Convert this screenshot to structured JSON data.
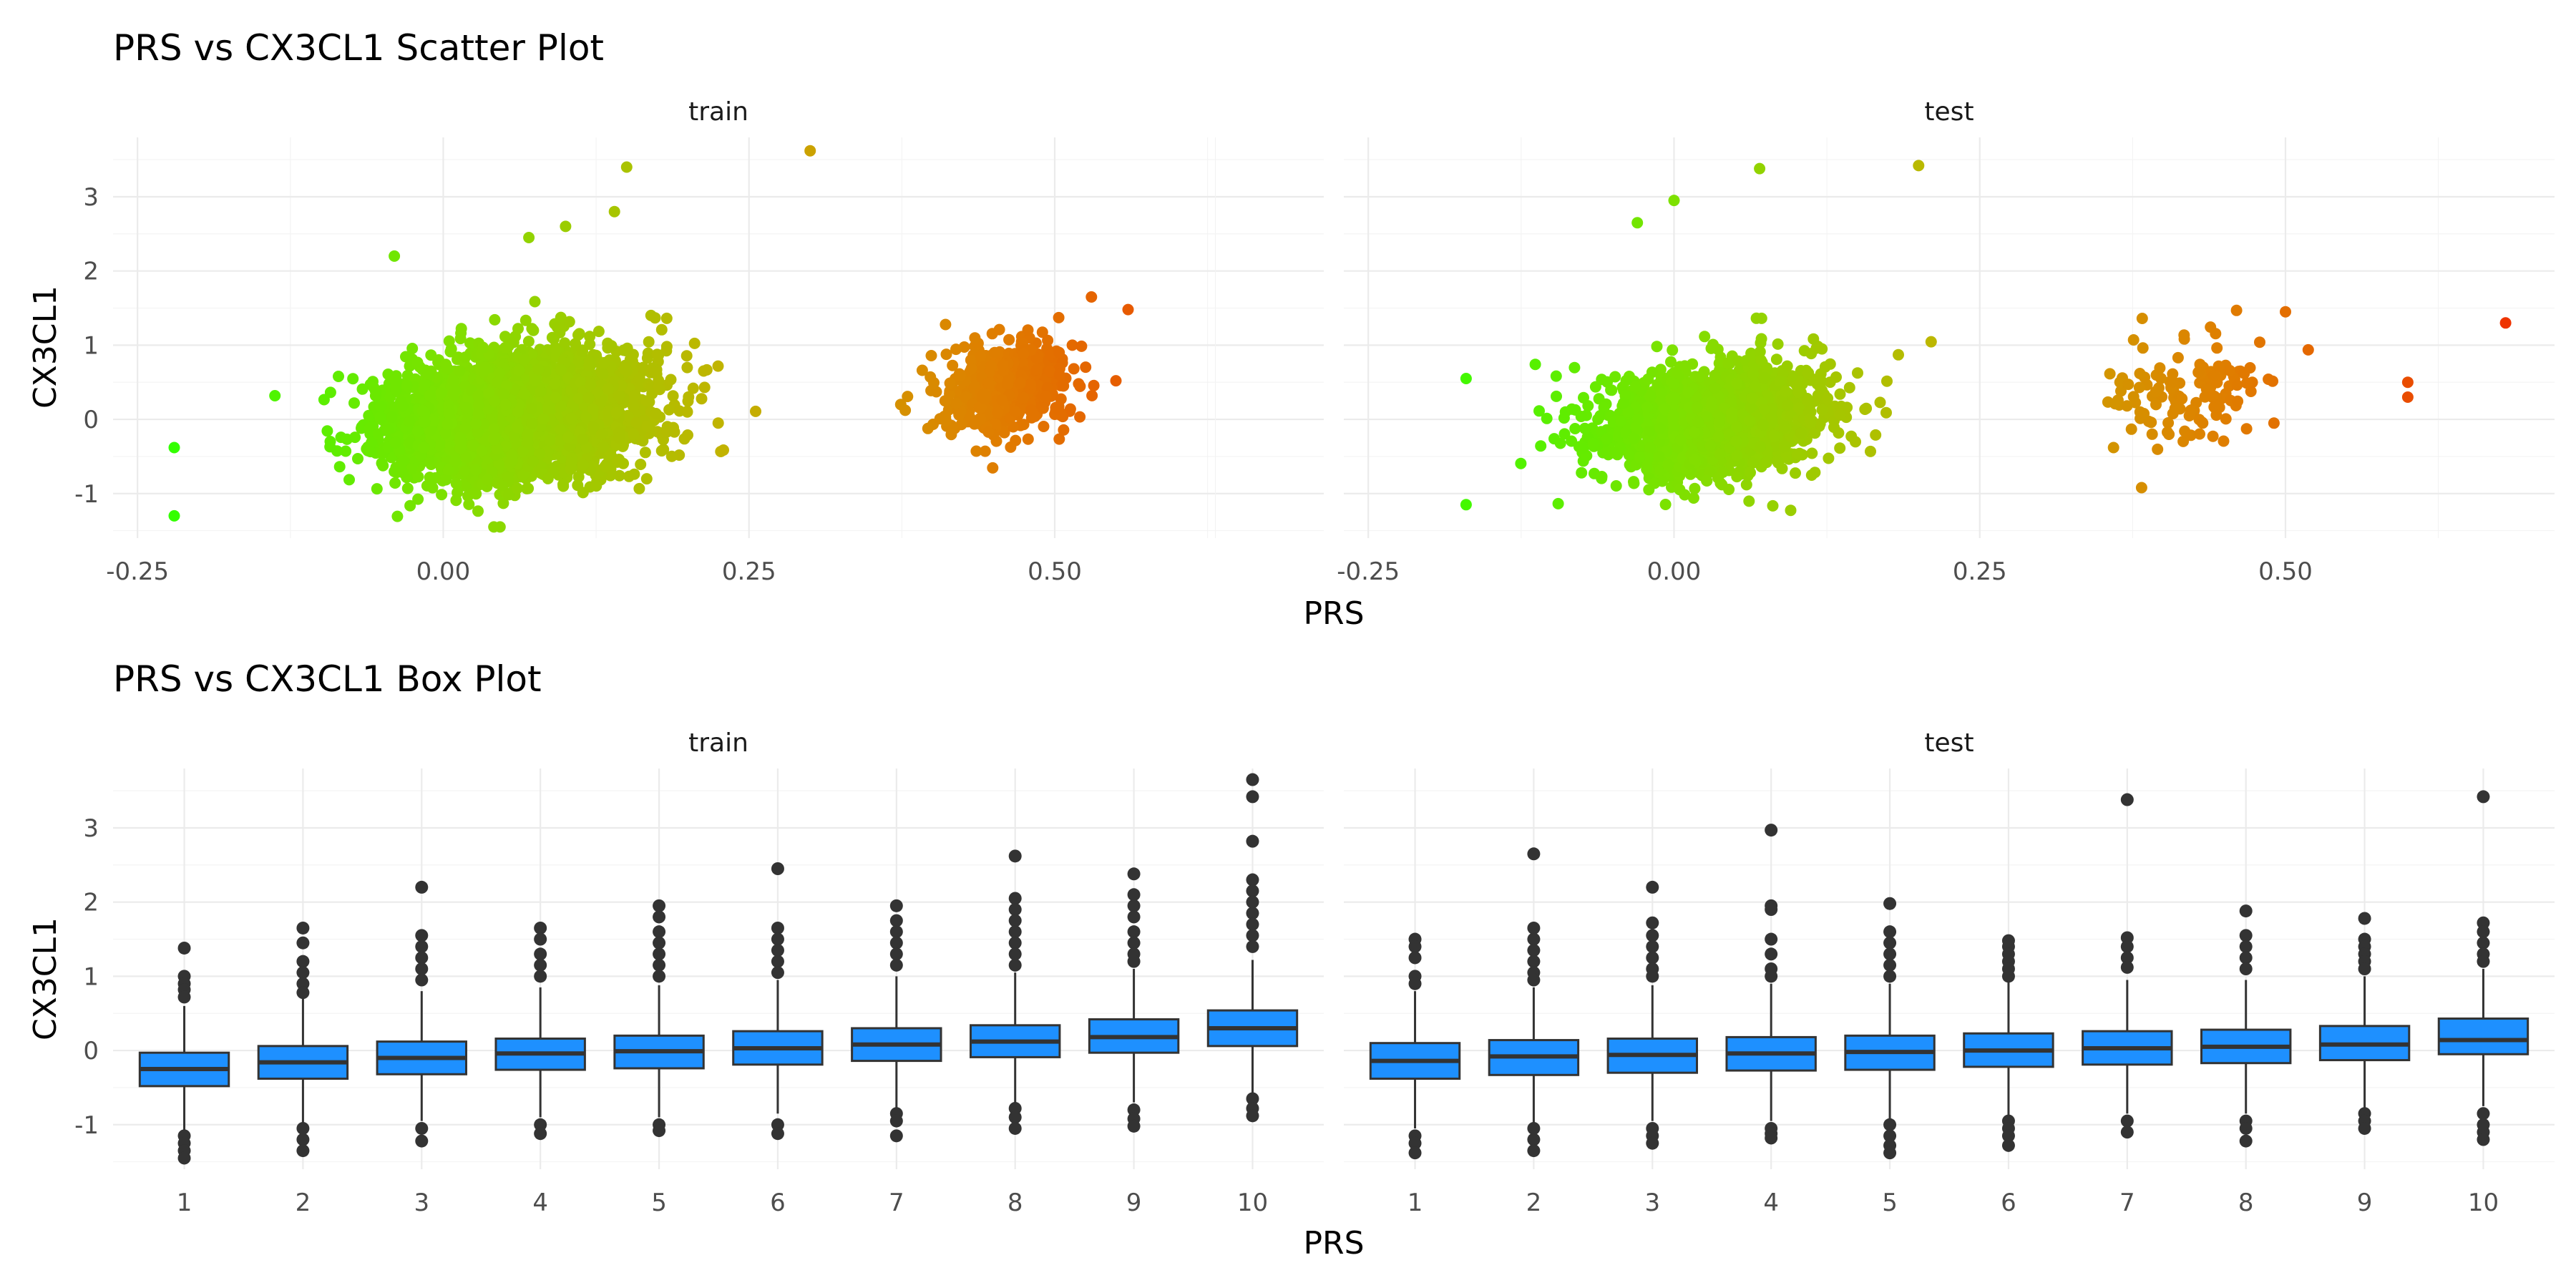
{
  "chart_data": [
    {
      "type": "scatter",
      "title": "PRS vs CX3CL1 Scatter Plot",
      "xlabel": "PRS",
      "ylabel": "CX3CL1",
      "xlim": [
        -0.27,
        0.72
      ],
      "ylim": [
        -1.6,
        3.8
      ],
      "x_ticks": [
        -0.25,
        0.0,
        0.25,
        0.5
      ],
      "x_tick_labels": [
        "-0.25",
        "0.00",
        "0.25",
        "0.50"
      ],
      "y_ticks": [
        -1,
        0,
        1,
        2,
        3
      ],
      "y_tick_labels": [
        "-1",
        "0",
        "1",
        "2",
        "3"
      ],
      "grid": true,
      "color_encoding": "points colored by PRS, green (low) through yellow and orange to red (high)",
      "color_stops": [
        "#33ff00",
        "#7fe000",
        "#c2b300",
        "#e07d00",
        "#ee3300"
      ],
      "facets": [
        {
          "name": "train",
          "x_range": [
            -0.22,
            0.56
          ],
          "notable_points": [
            [
              -0.22,
              -0.38
            ],
            [
              -0.22,
              -1.3
            ],
            [
              0.15,
              3.4
            ],
            [
              0.3,
              3.62
            ],
            [
              0.14,
              2.8
            ],
            [
              0.07,
              2.45
            ],
            [
              0.1,
              2.6
            ],
            [
              -0.04,
              2.2
            ],
            [
              0.53,
              1.65
            ],
            [
              0.56,
              1.48
            ],
            [
              0.55,
              0.52
            ]
          ],
          "clusters": [
            {
              "x_center": 0.06,
              "y_center": 0.05,
              "x_spread": 0.09,
              "y_spread": 0.5,
              "n": 4000
            },
            {
              "x_center": 0.46,
              "y_center": 0.45,
              "x_spread": 0.05,
              "y_spread": 0.38,
              "n": 500
            }
          ]
        },
        {
          "name": "test",
          "x_range": [
            -0.17,
            0.68
          ],
          "notable_points": [
            [
              0.07,
              3.38
            ],
            [
              0.2,
              3.42
            ],
            [
              0.0,
              2.95
            ],
            [
              -0.03,
              2.65
            ],
            [
              0.68,
              1.3
            ],
            [
              0.6,
              0.5
            ],
            [
              0.6,
              0.3
            ],
            [
              0.5,
              1.45
            ],
            [
              -0.17,
              0.55
            ],
            [
              -0.17,
              -1.15
            ]
          ],
          "clusters": [
            {
              "x_center": 0.03,
              "y_center": 0.0,
              "x_spread": 0.085,
              "y_spread": 0.45,
              "n": 1800
            },
            {
              "x_center": 0.42,
              "y_center": 0.35,
              "x_spread": 0.06,
              "y_spread": 0.45,
              "n": 130
            }
          ]
        }
      ]
    },
    {
      "type": "box",
      "title": "PRS vs CX3CL1 Box Plot",
      "xlabel": "PRS",
      "ylabel": "CX3CL1",
      "categories": [
        "1",
        "2",
        "3",
        "4",
        "5",
        "6",
        "7",
        "8",
        "9",
        "10"
      ],
      "ylim": [
        -1.6,
        3.8
      ],
      "y_ticks": [
        -1,
        0,
        1,
        2,
        3
      ],
      "y_tick_labels": [
        "-1",
        "0",
        "1",
        "2",
        "3"
      ],
      "grid": true,
      "box_color": "#1e90ff",
      "facets": [
        {
          "name": "train",
          "boxes": [
            {
              "q1": -0.48,
              "median": -0.25,
              "q3": -0.03,
              "whisker_low": -1.1,
              "whisker_high": 0.6,
              "outliers": [
                1.38,
                1.0,
                0.9,
                0.82,
                0.72,
                -1.15,
                -1.25,
                -1.35,
                -1.45
              ]
            },
            {
              "q1": -0.38,
              "median": -0.16,
              "q3": 0.06,
              "whisker_low": -1.0,
              "whisker_high": 0.7,
              "outliers": [
                1.65,
                1.45,
                1.2,
                1.05,
                0.9,
                0.78,
                -1.05,
                -1.2,
                -1.35
              ]
            },
            {
              "q1": -0.32,
              "median": -0.1,
              "q3": 0.12,
              "whisker_low": -0.95,
              "whisker_high": 0.8,
              "outliers": [
                2.2,
                1.55,
                1.4,
                1.25,
                1.1,
                0.95,
                -1.05,
                -1.22
              ]
            },
            {
              "q1": -0.26,
              "median": -0.04,
              "q3": 0.16,
              "whisker_low": -0.9,
              "whisker_high": 0.85,
              "outliers": [
                1.65,
                1.5,
                1.3,
                1.15,
                1.0,
                -1.0,
                -1.12
              ]
            },
            {
              "q1": -0.24,
              "median": -0.01,
              "q3": 0.2,
              "whisker_low": -0.9,
              "whisker_high": 0.88,
              "outliers": [
                1.95,
                1.8,
                1.6,
                1.45,
                1.3,
                1.15,
                1.0,
                -1.0,
                -1.08
              ]
            },
            {
              "q1": -0.19,
              "median": 0.03,
              "q3": 0.26,
              "whisker_low": -0.85,
              "whisker_high": 0.95,
              "outliers": [
                2.45,
                1.65,
                1.5,
                1.35,
                1.2,
                1.05,
                -1.0,
                -1.12
              ]
            },
            {
              "q1": -0.14,
              "median": 0.08,
              "q3": 0.3,
              "whisker_low": -0.78,
              "whisker_high": 1.0,
              "outliers": [
                1.95,
                1.75,
                1.6,
                1.45,
                1.3,
                1.15,
                -0.85,
                -0.95,
                -1.15
              ]
            },
            {
              "q1": -0.09,
              "median": 0.12,
              "q3": 0.34,
              "whisker_low": -0.7,
              "whisker_high": 1.05,
              "outliers": [
                2.62,
                2.05,
                1.9,
                1.75,
                1.6,
                1.45,
                1.3,
                1.15,
                -0.78,
                -0.9,
                -1.05
              ]
            },
            {
              "q1": -0.03,
              "median": 0.18,
              "q3": 0.42,
              "whisker_low": -0.7,
              "whisker_high": 1.1,
              "outliers": [
                2.38,
                2.1,
                1.95,
                1.8,
                1.6,
                1.45,
                1.3,
                1.2,
                -0.8,
                -0.92,
                -1.02
              ]
            },
            {
              "q1": 0.06,
              "median": 0.3,
              "q3": 0.54,
              "whisker_low": -0.6,
              "whisker_high": 1.22,
              "outliers": [
                3.65,
                3.42,
                2.82,
                2.3,
                2.15,
                2.0,
                1.85,
                1.7,
                1.55,
                1.4,
                -0.65,
                -0.78,
                -0.88
              ]
            }
          ]
        },
        {
          "name": "test",
          "boxes": [
            {
              "q1": -0.38,
              "median": -0.14,
              "q3": 0.1,
              "whisker_low": -1.05,
              "whisker_high": 0.8,
              "outliers": [
                1.5,
                1.4,
                1.25,
                1.0,
                0.9,
                -1.15,
                -1.25,
                -1.38
              ]
            },
            {
              "q1": -0.33,
              "median": -0.08,
              "q3": 0.14,
              "whisker_low": -1.0,
              "whisker_high": 0.85,
              "outliers": [
                2.65,
                1.65,
                1.5,
                1.35,
                1.2,
                1.05,
                0.95,
                -1.05,
                -1.2,
                -1.35
              ]
            },
            {
              "q1": -0.3,
              "median": -0.06,
              "q3": 0.16,
              "whisker_low": -0.95,
              "whisker_high": 0.88,
              "outliers": [
                2.2,
                1.72,
                1.55,
                1.4,
                1.25,
                1.1,
                1.0,
                -1.05,
                -1.15,
                -1.25
              ]
            },
            {
              "q1": -0.27,
              "median": -0.04,
              "q3": 0.18,
              "whisker_low": -0.95,
              "whisker_high": 0.9,
              "outliers": [
                2.97,
                1.95,
                1.9,
                1.5,
                1.3,
                1.1,
                1.0,
                -1.05,
                -1.12,
                -1.18
              ]
            },
            {
              "q1": -0.26,
              "median": -0.02,
              "q3": 0.2,
              "whisker_low": -0.95,
              "whisker_high": 0.9,
              "outliers": [
                1.98,
                1.6,
                1.45,
                1.3,
                1.15,
                1.0,
                -1.0,
                -1.15,
                -1.28,
                -1.38
              ]
            },
            {
              "q1": -0.22,
              "median": 0.0,
              "q3": 0.23,
              "whisker_low": -0.9,
              "whisker_high": 0.92,
              "outliers": [
                1.48,
                1.4,
                1.3,
                1.2,
                1.1,
                1.0,
                -0.95,
                -1.05,
                -1.15,
                -1.28
              ]
            },
            {
              "q1": -0.19,
              "median": 0.03,
              "q3": 0.26,
              "whisker_low": -0.85,
              "whisker_high": 0.95,
              "outliers": [
                3.38,
                1.52,
                1.4,
                1.25,
                1.12,
                -0.95,
                -1.1
              ]
            },
            {
              "q1": -0.17,
              "median": 0.05,
              "q3": 0.28,
              "whisker_low": -0.85,
              "whisker_high": 0.95,
              "outliers": [
                1.88,
                1.55,
                1.4,
                1.25,
                1.1,
                -0.95,
                -1.05,
                -1.22
              ]
            },
            {
              "q1": -0.13,
              "median": 0.08,
              "q3": 0.33,
              "whisker_low": -0.8,
              "whisker_high": 1.0,
              "outliers": [
                1.78,
                1.5,
                1.4,
                1.3,
                1.2,
                1.1,
                -0.85,
                -0.95,
                -1.05
              ]
            },
            {
              "q1": -0.05,
              "median": 0.14,
              "q3": 0.43,
              "whisker_low": -0.75,
              "whisker_high": 1.1,
              "outliers": [
                3.42,
                1.72,
                1.6,
                1.45,
                1.3,
                1.2,
                -0.85,
                -1.0,
                -1.1,
                -1.2
              ]
            }
          ]
        }
      ]
    }
  ]
}
